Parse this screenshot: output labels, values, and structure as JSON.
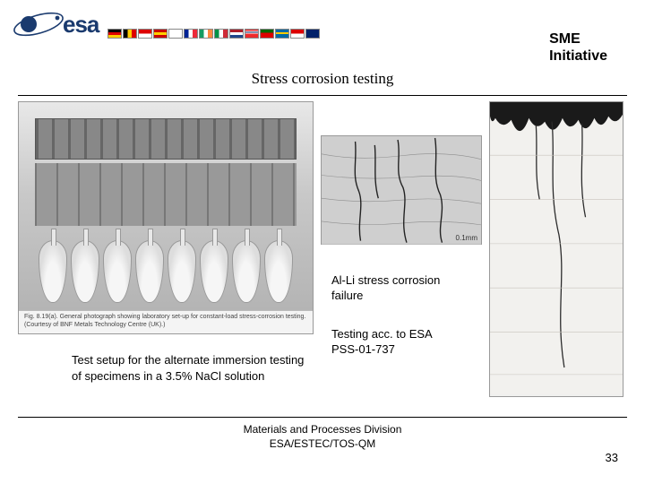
{
  "header": {
    "logo_text": "esa",
    "sme_line1": "SME",
    "sme_line2": "Initiative",
    "flags": [
      {
        "bg": "linear-gradient(180deg,#000 33%,#d00 33% 66%,#fc0 66%)"
      },
      {
        "bg": "linear-gradient(90deg,#000 33%,#fc0 33% 66%,#d00 66%)"
      },
      {
        "bg": "linear-gradient(180deg,#d00 50%,#fff 50%)"
      },
      {
        "bg": "linear-gradient(180deg,#c00 33%,#ffcf00 33% 66%,#c00 66%)"
      },
      {
        "bg": "linear-gradient(180deg,#003580 36%,#fff 36%); position:relative"
      },
      {
        "bg": "linear-gradient(90deg,#002395 33%,#fff 33% 66%,#ed2939 66%)"
      },
      {
        "bg": "linear-gradient(90deg,#169b62 33%,#fff 33% 66%,#ff883e 66%)"
      },
      {
        "bg": "linear-gradient(90deg,#009246 33%,#fff 33% 66%,#ce2b37 66%)"
      },
      {
        "bg": "linear-gradient(180deg,#ae1c28 33%,#fff 33% 66%,#21468b 66%)"
      },
      {
        "bg": "linear-gradient(180deg,#ef2b2d 18%,#fff 18% 28%,#002868 28% 40%,#fff 40% 50%,#ef2b2d 50%)"
      },
      {
        "bg": "linear-gradient(180deg,#006600 40%,#d00 40%)"
      },
      {
        "bg": "linear-gradient(180deg,#006aa7 36%,#fecc00 36% 54%,#006aa7 54%)"
      },
      {
        "bg": "linear-gradient(180deg,#d00 50%,#fff 50%)"
      },
      {
        "bg": "linear-gradient(180deg,#012169 0,#012169 100%)"
      }
    ]
  },
  "title": "Stress corrosion testing",
  "content": {
    "main_photo_caption": "Fig. 8.19(a). General photograph showing laboratory set-up for constant-load stress-corrosion testing. (Courtesy of BNF Metals Technology Centre (UK).)",
    "micro1_scale": "0.1mm",
    "label_alLi_1": "Al-Li stress corrosion",
    "label_alLi_2": "failure",
    "label_testing_1": "Testing acc. to ESA",
    "label_testing_2": "PSS-01-737",
    "label_setup_1": "Test setup  for the alternate immersion testing",
    "label_setup_2": "of specimens in a 3.5% NaCl solution"
  },
  "footer": {
    "line1": "Materials and Processes Division",
    "line2": "ESA/ESTEC/TOS-QM",
    "page": "33"
  },
  "colors": {
    "esa_blue": "#1a3a6e",
    "rule": "#000000"
  }
}
